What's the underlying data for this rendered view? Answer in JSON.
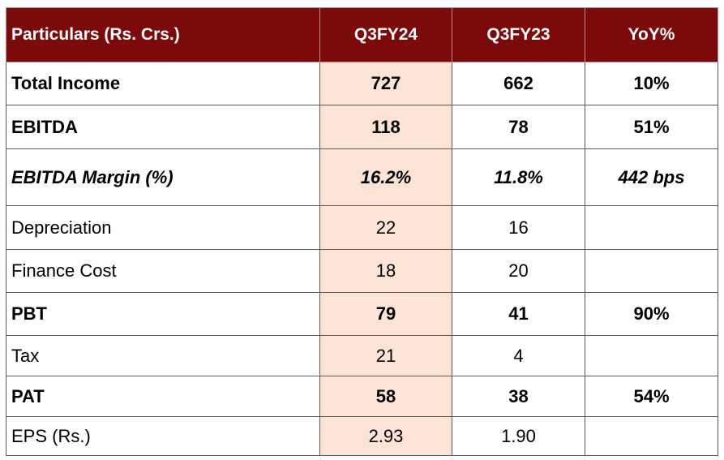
{
  "header": {
    "particulars": "Particulars (Rs. Crs.)",
    "col1": "Q3FY24",
    "col2": "Q3FY23",
    "col3": "YoY%"
  },
  "rows": [
    {
      "label": "Total Income",
      "q3fy24": "727",
      "q3fy23": "662",
      "yoy": "10%"
    },
    {
      "label": "EBITDA",
      "q3fy24": "118",
      "q3fy23": "78",
      "yoy": "51%"
    },
    {
      "label": "EBITDA Margin (%)",
      "q3fy24": "16.2%",
      "q3fy23": "11.8%",
      "yoy": "442 bps"
    },
    {
      "label": "Depreciation",
      "q3fy24": "22",
      "q3fy23": "16",
      "yoy": ""
    },
    {
      "label": "Finance Cost",
      "q3fy24": "18",
      "q3fy23": "20",
      "yoy": ""
    },
    {
      "label": "PBT",
      "q3fy24": "79",
      "q3fy23": "41",
      "yoy": "90%"
    },
    {
      "label": "Tax",
      "q3fy24": "21",
      "q3fy23": "4",
      "yoy": ""
    },
    {
      "label": "PAT",
      "q3fy24": "58",
      "q3fy23": "38",
      "yoy": "54%"
    },
    {
      "label": "EPS (Rs.)",
      "q3fy24": "2.93",
      "q3fy23": "1.90",
      "yoy": ""
    }
  ],
  "colors": {
    "header_bg": "#7d0a0a",
    "highlight_column_bg": "#fbe4d5"
  }
}
